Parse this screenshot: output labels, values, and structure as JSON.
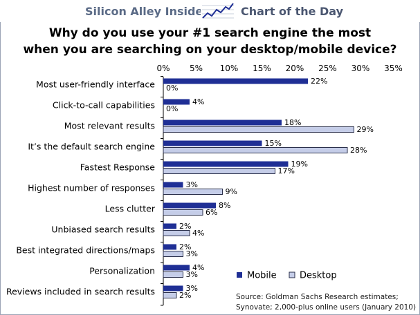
{
  "header": {
    "brand": "Silicon Alley Insider",
    "section": "Chart of the Day",
    "brand_icon": "trend-chart-icon"
  },
  "chart_data": {
    "type": "bar",
    "orientation": "horizontal",
    "title": "Why do you use your #1 search engine the most when you are searching on your desktop/mobile device?",
    "title_lines": [
      "Why do you use your #1 search engine the most",
      "when you are searching on your desktop/mobile device?"
    ],
    "categories": [
      "Most user-friendly interface",
      "Click-to-call capabilities",
      "Most relevant results",
      "It’s the default search engine",
      "Fastest Response",
      "Highest number of responses",
      "Less clutter",
      "Unbiased search results",
      "Best integrated directions/maps",
      "Personalization",
      "Reviews included in search results"
    ],
    "series": [
      {
        "name": "Mobile",
        "values": [
          22,
          4,
          18,
          15,
          19,
          3,
          8,
          2,
          2,
          4,
          3
        ],
        "color": "#1f2f95"
      },
      {
        "name": "Desktop",
        "values": [
          0,
          0,
          29,
          28,
          17,
          9,
          6,
          4,
          3,
          3,
          2
        ],
        "color": "#c5cde8"
      }
    ],
    "value_suffix": "%",
    "xlim": [
      0,
      35
    ],
    "xticks": [
      "0%",
      "5%",
      "10%",
      "15%",
      "20%",
      "25%",
      "30%",
      "35%"
    ],
    "xtick_values": [
      0,
      5,
      10,
      15,
      20,
      25,
      30,
      35
    ],
    "grid": false,
    "legend_position": "bottom-right",
    "source_lines": [
      "Source: Goldman Sachs Research estimates;",
      "Synovate; 2,000-plus online users (January 2010)"
    ]
  },
  "colors": {
    "mobile": "#1f2f95",
    "desktop": "#c5cde8",
    "desktop_border": "#2a2f4a",
    "axis": "#000000",
    "brand_text": "#5a6a86"
  }
}
